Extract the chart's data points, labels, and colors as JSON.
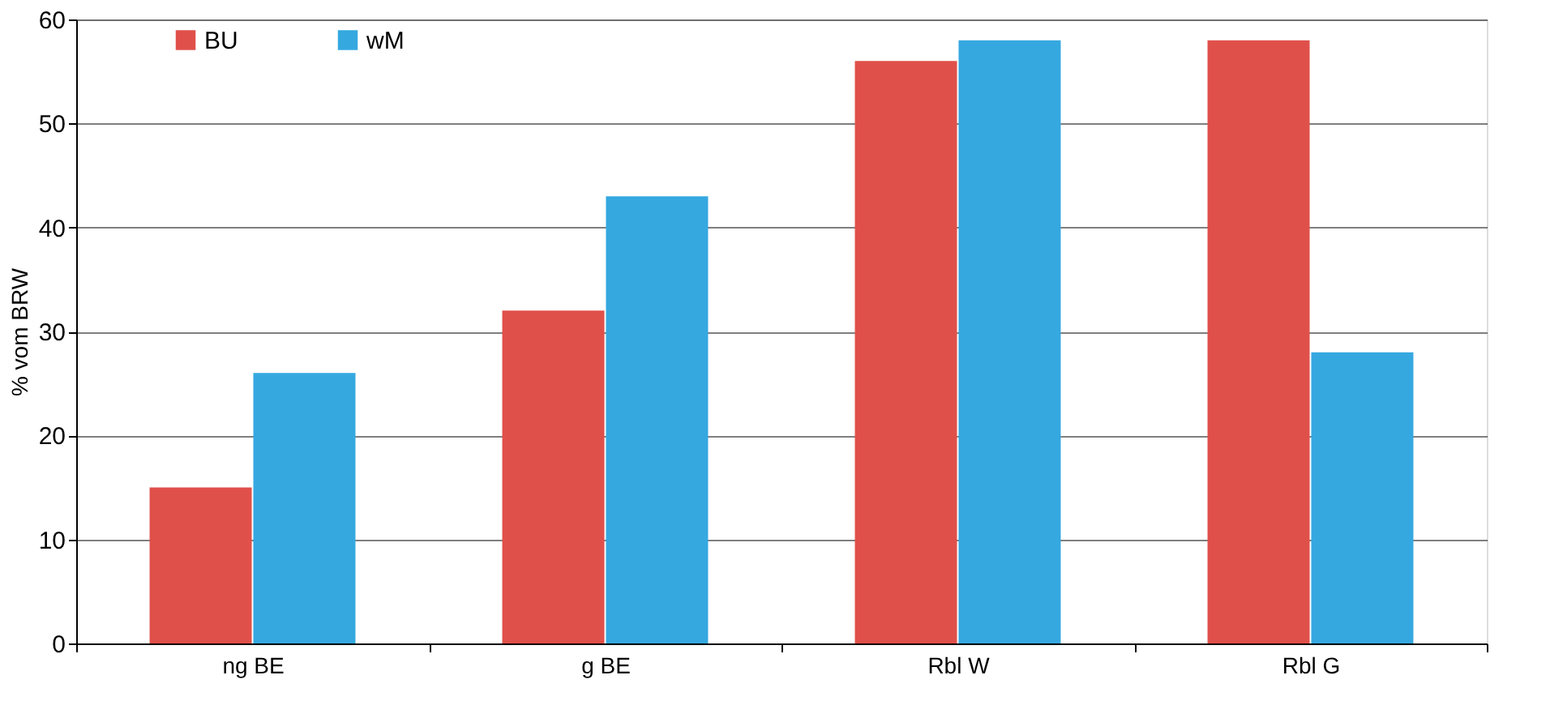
{
  "chart_data": {
    "type": "bar",
    "ylabel": "% vom BRW",
    "categories": [
      "ng BE",
      "g BE",
      "Rbl W",
      "Rbl G"
    ],
    "series": [
      {
        "name": "BU",
        "color": "#e0504a",
        "values": [
          15,
          32,
          56,
          58
        ]
      },
      {
        "name": "wM",
        "color": "#35a8e0",
        "values": [
          26,
          43,
          58,
          28
        ]
      }
    ],
    "ylim": [
      0,
      60
    ],
    "yticks": [
      0,
      10,
      20,
      30,
      40,
      50,
      60
    ],
    "grid": "y",
    "legend": "top left"
  }
}
